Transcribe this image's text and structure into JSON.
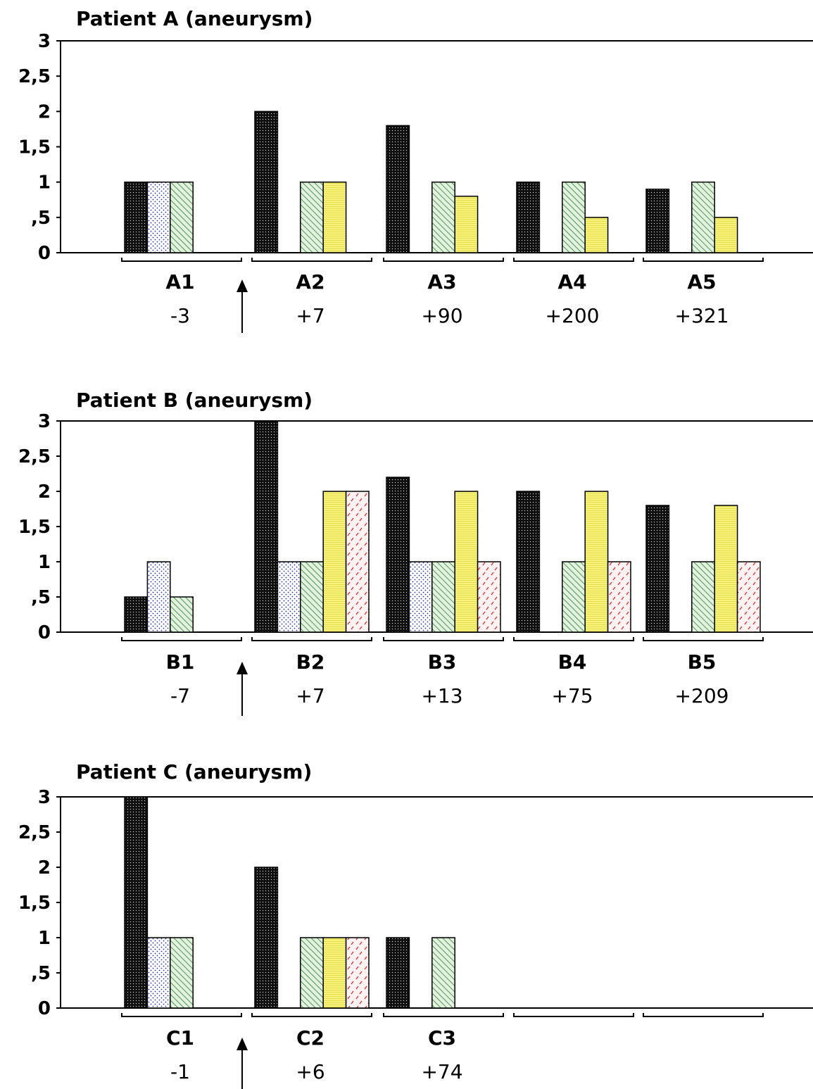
{
  "chart_data": [
    {
      "type": "bar",
      "title": "Patient A (aneurysm)",
      "ylim": [
        0,
        3
      ],
      "yticks": [
        "0",
        ",5",
        "1",
        "1,5",
        "2",
        "2,5",
        "3"
      ],
      "categories": [
        "A1",
        "A2",
        "A3",
        "A4",
        "A5"
      ],
      "days": [
        "-3",
        "+7",
        "+90",
        "+200",
        "+321"
      ],
      "series_values": [
        [
          1,
          2,
          1.8,
          1,
          0.9
        ],
        [
          1,
          null,
          null,
          null,
          null
        ],
        [
          1,
          1,
          1,
          1,
          1
        ],
        [
          null,
          1,
          0.8,
          0.5,
          0.5
        ],
        [
          null,
          null,
          null,
          null,
          null
        ]
      ]
    },
    {
      "type": "bar",
      "title": "Patient B (aneurysm)",
      "ylim": [
        0,
        3
      ],
      "yticks": [
        "0",
        ",5",
        "1",
        "1,5",
        "2",
        "2,5",
        "3"
      ],
      "categories": [
        "B1",
        "B2",
        "B3",
        "B4",
        "B5"
      ],
      "days": [
        "-7",
        "+7",
        "+13",
        "+75",
        "+209"
      ],
      "series_values": [
        [
          0.5,
          3,
          2.2,
          2,
          1.8
        ],
        [
          1,
          1,
          1,
          null,
          null
        ],
        [
          0.5,
          1,
          1,
          1,
          1
        ],
        [
          null,
          2,
          2,
          2,
          1.8
        ],
        [
          null,
          2,
          1,
          1,
          1
        ]
      ]
    },
    {
      "type": "bar",
      "title": "Patient C (aneurysm)",
      "ylim": [
        0,
        3
      ],
      "yticks": [
        "0",
        ",5",
        "1",
        "1,5",
        "2",
        "2,5",
        "3"
      ],
      "categories": [
        "C1",
        "C2",
        "C3",
        "",
        ""
      ],
      "days": [
        "-1",
        "+6",
        "+74",
        "",
        ""
      ],
      "series_values": [
        [
          3,
          2,
          1,
          null,
          null
        ],
        [
          1,
          null,
          null,
          null,
          null
        ],
        [
          1,
          1,
          1,
          null,
          null
        ],
        [
          null,
          1,
          null,
          null,
          null
        ],
        [
          null,
          1,
          null,
          null,
          null
        ]
      ]
    }
  ],
  "series_styles": [
    {
      "pattern": "dense-black-dots",
      "fill": "#111111",
      "accent": "#ffffff"
    },
    {
      "pattern": "blue-dots",
      "fill": "#ffffff",
      "accent": "#2233aa"
    },
    {
      "pattern": "green-diagonal",
      "fill": "#dff0d8",
      "accent": "#2e7d32"
    },
    {
      "pattern": "yellow-lines",
      "fill": "#f7f27a",
      "accent": "#d7cf3a"
    },
    {
      "pattern": "red-dashes",
      "fill": "#fff0f0",
      "accent": "#d33333"
    }
  ],
  "marker_icon": "up-arrow-icon"
}
